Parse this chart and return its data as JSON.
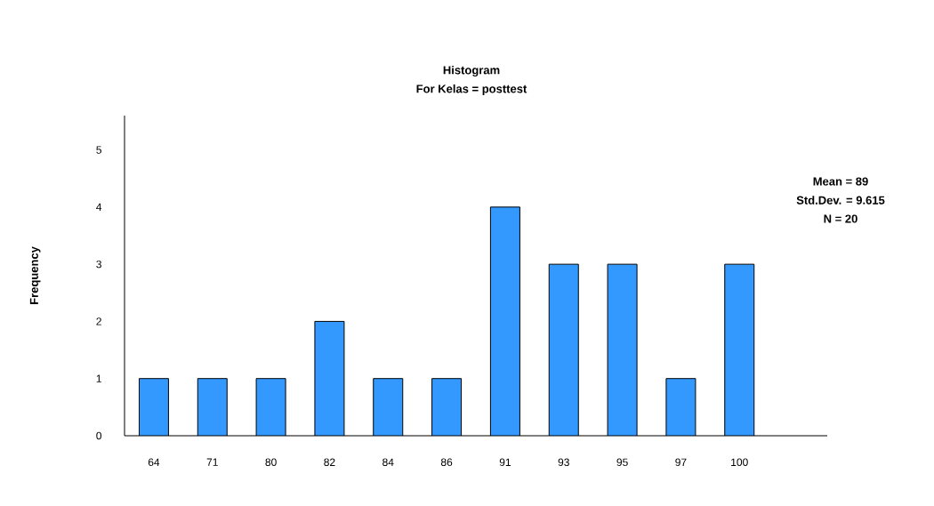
{
  "chart_data": {
    "type": "bar",
    "title": "Histogram",
    "subtitle": "For Kelas = posttest",
    "ylabel": "Frequency",
    "categories": [
      "64",
      "71",
      "80",
      "82",
      "84",
      "86",
      "91",
      "93",
      "95",
      "97",
      "100"
    ],
    "values": [
      1,
      1,
      1,
      2,
      1,
      1,
      4,
      3,
      3,
      1,
      3
    ],
    "color": "#3399ff",
    "ylim": [
      0,
      5.6
    ],
    "yticks": [
      0,
      1,
      2,
      3,
      4,
      5
    ],
    "annotations": [
      "Mean = 89",
      "Std.Dev. = 9.615",
      "N = 20"
    ]
  }
}
